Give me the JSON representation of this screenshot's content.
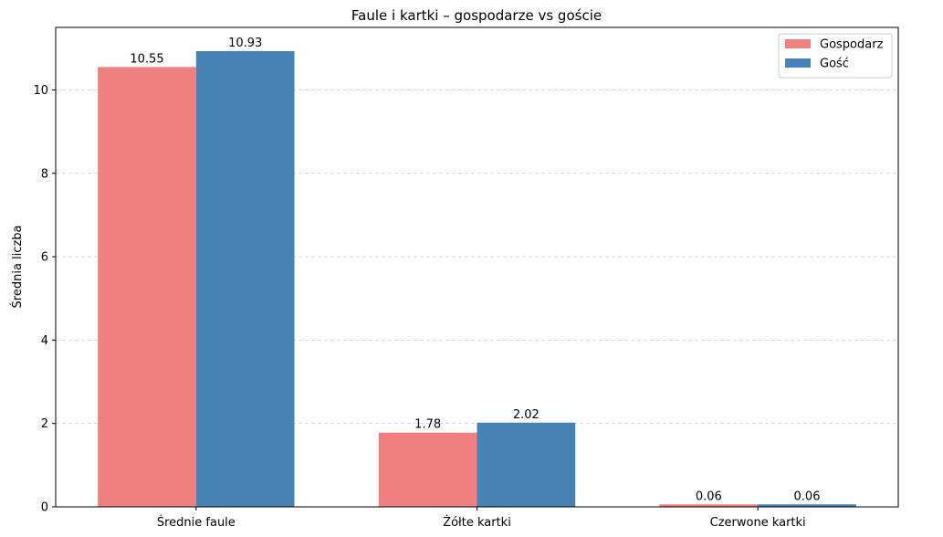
{
  "chart_data": {
    "type": "bar",
    "title": "Faule i kartki – gospodarze vs goście",
    "xlabel": "",
    "ylabel": "Średnia liczba",
    "categories": [
      "Średnie faule",
      "Żółte kartki",
      "Czerwone kartki"
    ],
    "series": [
      {
        "name": "Gospodarz",
        "values": [
          10.55,
          1.78,
          0.06
        ],
        "labels": [
          "10.55",
          "1.78",
          "0.06"
        ],
        "color": "#F08080"
      },
      {
        "name": "Gość",
        "values": [
          10.93,
          2.02,
          0.06
        ],
        "labels": [
          "10.93",
          "2.02",
          "0.06"
        ],
        "color": "#4682B4"
      }
    ],
    "ylim": [
      0,
      11.5
    ],
    "yticks": [
      0,
      2,
      4,
      6,
      8,
      10
    ],
    "grid": "y-dashed",
    "legend": "top-right"
  }
}
